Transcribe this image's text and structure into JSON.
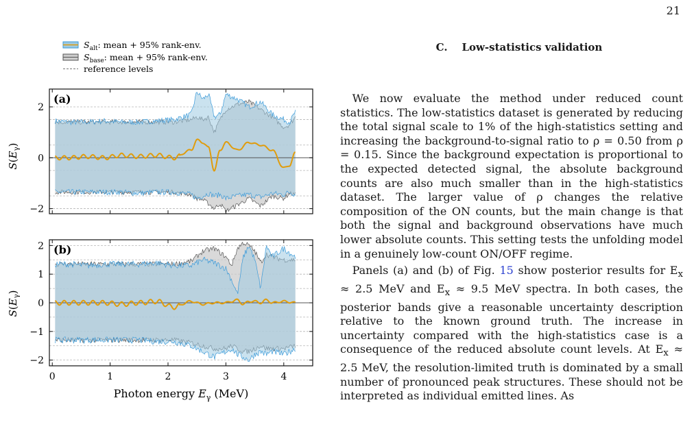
{
  "page_number": "21",
  "figure": {
    "legend": {
      "alt_label": "S_alt: mean + 95% rank-env.",
      "alt_symbol": "S",
      "alt_sub": "alt",
      "alt_text": ": mean + 95% rank-env.",
      "base_symbol": "S",
      "base_sub": "base",
      "base_text": ": mean + 95% rank-env.",
      "ref_text": "reference levels",
      "alt_fill": "#9ecae1",
      "alt_edge": "#3a9ad9",
      "base_fill": "#cccccc",
      "base_edge": "#555555",
      "mean_color": "#e09c0c"
    },
    "ylabel": "S(E_γ)",
    "xlabel": "Photon energy E_γ (MeV)",
    "xlabel_main": "Photon energy ",
    "xlabel_var": "E",
    "xlabel_sub": "γ",
    "xlabel_unit": " (MeV)"
  },
  "chart_data": [
    {
      "type": "area",
      "panel": "(a)",
      "xlim": [
        -0.05,
        4.5
      ],
      "ylim": [
        -2.2,
        2.7
      ],
      "xticks": [
        0,
        1,
        2,
        3,
        4
      ],
      "yticks": [
        -2,
        0,
        2
      ],
      "ytick_labels": [
        "−2",
        "0",
        "2"
      ],
      "reference_levels": [
        -2,
        -1.5,
        -0.5,
        0.5,
        1.5,
        2
      ],
      "x": [
        0.05,
        0.3,
        0.6,
        0.9,
        1.2,
        1.5,
        1.8,
        2.1,
        2.4,
        2.5,
        2.6,
        2.7,
        2.8,
        2.9,
        3.0,
        3.2,
        3.4,
        3.6,
        3.8,
        4.0,
        4.1,
        4.2
      ],
      "series": [
        {
          "name": "S_alt upper",
          "values": [
            1.45,
            1.4,
            1.4,
            1.45,
            1.4,
            1.4,
            1.45,
            1.5,
            1.7,
            2.6,
            2.3,
            2.5,
            1.6,
            1.7,
            2.5,
            2.3,
            2.0,
            2.2,
            1.7,
            1.5,
            1.4,
            1.8
          ]
        },
        {
          "name": "S_base upper",
          "values": [
            1.4,
            1.4,
            1.4,
            1.4,
            1.4,
            1.4,
            1.4,
            1.4,
            1.5,
            1.6,
            1.5,
            1.6,
            1.0,
            1.5,
            1.9,
            2.1,
            2.2,
            1.9,
            1.6,
            1.2,
            1.3,
            1.6
          ]
        },
        {
          "name": "S_alt lower",
          "values": [
            -1.35,
            -1.35,
            -1.35,
            -1.35,
            -1.35,
            -1.4,
            -1.35,
            -1.35,
            -1.45,
            -1.6,
            -1.5,
            -1.4,
            -1.5,
            -1.45,
            -1.6,
            -1.5,
            -1.45,
            -1.55,
            -1.4,
            -1.45,
            -1.35,
            -1.45
          ]
        },
        {
          "name": "S_base lower",
          "values": [
            -1.35,
            -1.35,
            -1.35,
            -1.35,
            -1.35,
            -1.35,
            -1.35,
            -1.35,
            -1.45,
            -1.6,
            -1.65,
            -1.8,
            -2.0,
            -1.8,
            -2.1,
            -1.85,
            -1.6,
            -1.9,
            -1.5,
            -1.6,
            -1.4,
            -1.45
          ]
        },
        {
          "name": "mean",
          "values": [
            0.0,
            0.0,
            0.05,
            0.0,
            0.1,
            0.05,
            0.1,
            0.0,
            0.3,
            0.7,
            0.6,
            0.4,
            -0.5,
            0.3,
            0.6,
            0.3,
            0.6,
            0.5,
            0.3,
            -0.4,
            -0.3,
            0.2
          ]
        }
      ]
    },
    {
      "type": "area",
      "panel": "(b)",
      "xlim": [
        -0.05,
        4.5
      ],
      "ylim": [
        -2.2,
        2.2
      ],
      "xticks": [
        0,
        1,
        2,
        3,
        4
      ],
      "xtick_labels": [
        "0",
        "1",
        "2",
        "3",
        "4"
      ],
      "yticks": [
        -2,
        -1,
        0,
        1,
        2
      ],
      "ytick_labels": [
        "−2",
        "−1",
        "0",
        "1",
        "2"
      ],
      "reference_levels": [
        -2,
        -1.5,
        -1,
        -0.5,
        0.5,
        1,
        1.5,
        2
      ],
      "x": [
        0.05,
        0.3,
        0.6,
        0.9,
        1.2,
        1.5,
        1.8,
        2.1,
        2.4,
        2.6,
        2.8,
        3.0,
        3.1,
        3.2,
        3.3,
        3.4,
        3.5,
        3.6,
        3.7,
        3.8,
        4.0,
        4.2
      ],
      "series": [
        {
          "name": "S_alt upper",
          "values": [
            1.35,
            1.35,
            1.3,
            1.35,
            1.35,
            1.35,
            1.4,
            1.3,
            1.3,
            1.5,
            1.4,
            1.2,
            0.8,
            0.3,
            1.6,
            2.0,
            1.5,
            0.5,
            2.0,
            1.6,
            1.9,
            1.6
          ]
        },
        {
          "name": "S_base upper",
          "values": [
            1.35,
            1.35,
            1.35,
            1.35,
            1.35,
            1.35,
            1.35,
            1.35,
            1.45,
            1.8,
            1.9,
            1.6,
            1.3,
            1.9,
            2.1,
            2.0,
            1.8,
            1.4,
            1.7,
            1.6,
            1.5,
            1.5
          ]
        },
        {
          "name": "S_alt lower",
          "values": [
            -1.3,
            -1.3,
            -1.3,
            -1.3,
            -1.3,
            -1.3,
            -1.35,
            -1.35,
            -1.5,
            -1.7,
            -1.9,
            -1.7,
            -1.6,
            -1.8,
            -1.9,
            -2.0,
            -1.8,
            -1.7,
            -1.8,
            -1.7,
            -1.8,
            -1.6
          ]
        },
        {
          "name": "S_base lower",
          "values": [
            -1.3,
            -1.3,
            -1.3,
            -1.3,
            -1.3,
            -1.3,
            -1.3,
            -1.3,
            -1.4,
            -1.5,
            -1.6,
            -1.6,
            -1.5,
            -1.6,
            -1.7,
            -1.7,
            -1.6,
            -1.5,
            -1.6,
            -1.6,
            -1.6,
            -1.5
          ]
        },
        {
          "name": "mean",
          "values": [
            0.0,
            0.0,
            0.0,
            0.0,
            -0.05,
            0.0,
            0.05,
            -0.15,
            0.05,
            -0.05,
            0.0,
            0.0,
            0.05,
            0.1,
            -0.05,
            0.05,
            0.05,
            0.0,
            0.1,
            0.0,
            0.05,
            0.0
          ]
        }
      ]
    }
  ],
  "text": {
    "heading_label": "C.",
    "heading_title": "Low-statistics validation",
    "p1": "We now evaluate the method under reduced count statistics. The low-statistics dataset is generated by reducing the total signal scale to 1% of the high-statistics setting and increasing the background-to-signal ratio to ρ = 0.50 from ρ = 0.15. Since the background expectation is proportional to the expected detected signal, the absolute background counts are also much smaller than in the high-statistics dataset. The larger value of ρ changes the relative composition of the ON counts, but the main change is that both the signal and background observations have much lower absolute counts. This setting tests the unfolding model in a genuinely low-count ON/OFF regime.",
    "p2_a": "Panels (a) and (b) of Fig. ",
    "p2_ref": "15",
    "p2_b": " show posterior results for E",
    "p2_c": "x",
    "p2_d": " ≈ 2.5 MeV and E",
    "p2_e": "x",
    "p2_f": " ≈ 9.5 MeV spectra. In both cases, the posterior bands give a reasonable uncertainty description relative to the known ground truth. The increase in uncertainty compared with the high-statistics case is a consequence of the reduced absolute count levels. At E",
    "p2_g": "x",
    "p2_h": " ≈ 2.5 MeV, the resolution-limited truth is dominated by a small number of pronounced peak structures. These should not be interpreted as individual emitted lines. As"
  }
}
